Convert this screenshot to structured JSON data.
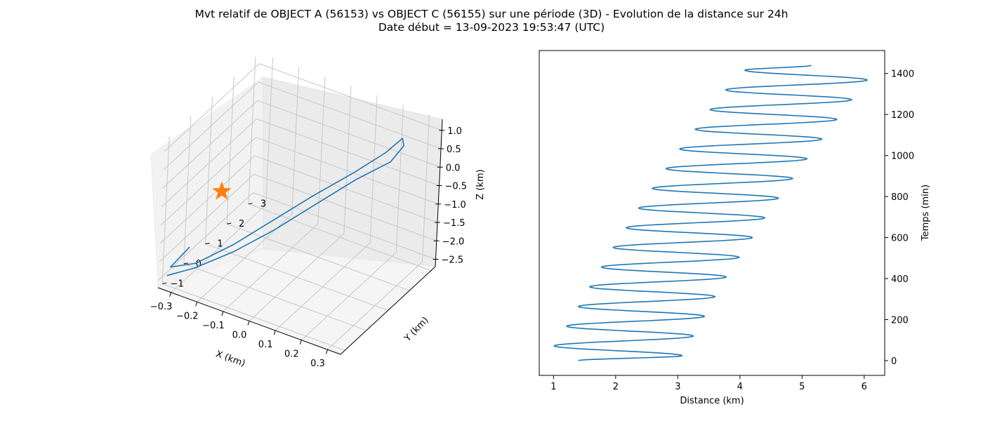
{
  "title": {
    "line1": "Mvt relatif de OBJECT A (56153) vs OBJECT C (56155) sur une période (3D) - Evolution de la distance sur 24h",
    "line2": "Date début = 13-09-2023 19:53:47 (UTC)"
  },
  "chart_data": [
    {
      "type": "line3d",
      "xlabel": "X (km)",
      "ylabel": "Y (km)",
      "zlabel": "Z (km)",
      "xlim": [
        -0.35,
        0.35
      ],
      "ylim": [
        -1.2,
        3.2
      ],
      "zlim": [
        -2.7,
        1.3
      ],
      "x_ticks": [
        -0.3,
        -0.2,
        -0.1,
        0.0,
        0.1,
        0.2,
        0.3
      ],
      "y_ticks": [
        -1,
        0,
        1,
        2,
        3
      ],
      "z_ticks": [
        -2.5,
        -2.0,
        -1.5,
        -1.0,
        -0.5,
        0.0,
        0.5,
        1.0
      ],
      "grid": true,
      "series": [
        {
          "color": "#1f77b4",
          "points": [
            {
              "x": -0.3,
              "y": -0.4,
              "z": -1.9
            },
            {
              "x": -0.33,
              "y": -0.9,
              "z": -2.25
            },
            {
              "x": -0.25,
              "y": -0.7,
              "z": -2.05
            },
            {
              "x": -0.15,
              "y": -0.2,
              "z": -1.55
            },
            {
              "x": -0.05,
              "y": 0.4,
              "z": -0.95
            },
            {
              "x": 0.05,
              "y": 1.0,
              "z": -0.35
            },
            {
              "x": 0.15,
              "y": 1.6,
              "z": 0.2
            },
            {
              "x": 0.22,
              "y": 2.2,
              "z": 0.6
            },
            {
              "x": 0.25,
              "y": 2.6,
              "z": 0.85
            },
            {
              "x": 0.26,
              "y": 2.55,
              "z": 0.7
            },
            {
              "x": 0.24,
              "y": 2.2,
              "z": 0.4
            },
            {
              "x": 0.15,
              "y": 1.7,
              "z": -0.05
            },
            {
              "x": 0.05,
              "y": 1.1,
              "z": -0.65
            },
            {
              "x": -0.05,
              "y": 0.45,
              "z": -1.25
            },
            {
              "x": -0.15,
              "y": -0.2,
              "z": -1.75
            },
            {
              "x": -0.25,
              "y": -0.75,
              "z": -2.15
            },
            {
              "x": -0.33,
              "y": -1.05,
              "z": -2.4
            }
          ]
        }
      ],
      "markers": [
        {
          "shape": "star",
          "color": "#ff7f0e",
          "x": -0.22,
          "y": 0.0,
          "z": -0.4
        }
      ]
    },
    {
      "type": "line",
      "xlabel": "Distance (km)",
      "ylabel": "Temps (min)",
      "xlim": [
        0.77,
        6.33
      ],
      "ylim": [
        -72,
        1512
      ],
      "x_ticks": [
        1,
        2,
        3,
        4,
        5,
        6
      ],
      "y_ticks": [
        0,
        200,
        400,
        600,
        800,
        1000,
        1200,
        1400
      ],
      "y_axis_side": "right",
      "grid": false,
      "series": [
        {
          "color": "#1f77b4",
          "period_min": 96,
          "minima": [
            {
              "t": 0,
              "distance": 1.4
            },
            {
              "t": 72,
              "distance": 1.01
            },
            {
              "t": 168,
              "distance": 1.21
            },
            {
              "t": 264,
              "distance": 1.4
            },
            {
              "t": 360,
              "distance": 1.58
            },
            {
              "t": 456,
              "distance": 1.77
            },
            {
              "t": 552,
              "distance": 1.96
            },
            {
              "t": 648,
              "distance": 2.17
            },
            {
              "t": 744,
              "distance": 2.37
            },
            {
              "t": 840,
              "distance": 2.59
            },
            {
              "t": 936,
              "distance": 2.81
            },
            {
              "t": 1032,
              "distance": 3.03
            },
            {
              "t": 1128,
              "distance": 3.28
            },
            {
              "t": 1224,
              "distance": 3.52
            },
            {
              "t": 1320,
              "distance": 3.77
            },
            {
              "t": 1416,
              "distance": 4.08
            }
          ],
          "maxima": [
            {
              "t": 24,
              "distance": 3.07
            },
            {
              "t": 120,
              "distance": 3.25
            },
            {
              "t": 216,
              "distance": 3.43
            },
            {
              "t": 312,
              "distance": 3.6
            },
            {
              "t": 408,
              "distance": 3.78
            },
            {
              "t": 504,
              "distance": 3.99
            },
            {
              "t": 600,
              "distance": 4.2
            },
            {
              "t": 696,
              "distance": 4.4
            },
            {
              "t": 792,
              "distance": 4.62
            },
            {
              "t": 888,
              "distance": 4.85
            },
            {
              "t": 984,
              "distance": 5.08
            },
            {
              "t": 1080,
              "distance": 5.32
            },
            {
              "t": 1176,
              "distance": 5.56
            },
            {
              "t": 1272,
              "distance": 5.8
            },
            {
              "t": 1368,
              "distance": 6.05
            }
          ],
          "end": {
            "t": 1440,
            "distance": 5.15
          }
        }
      ]
    }
  ]
}
